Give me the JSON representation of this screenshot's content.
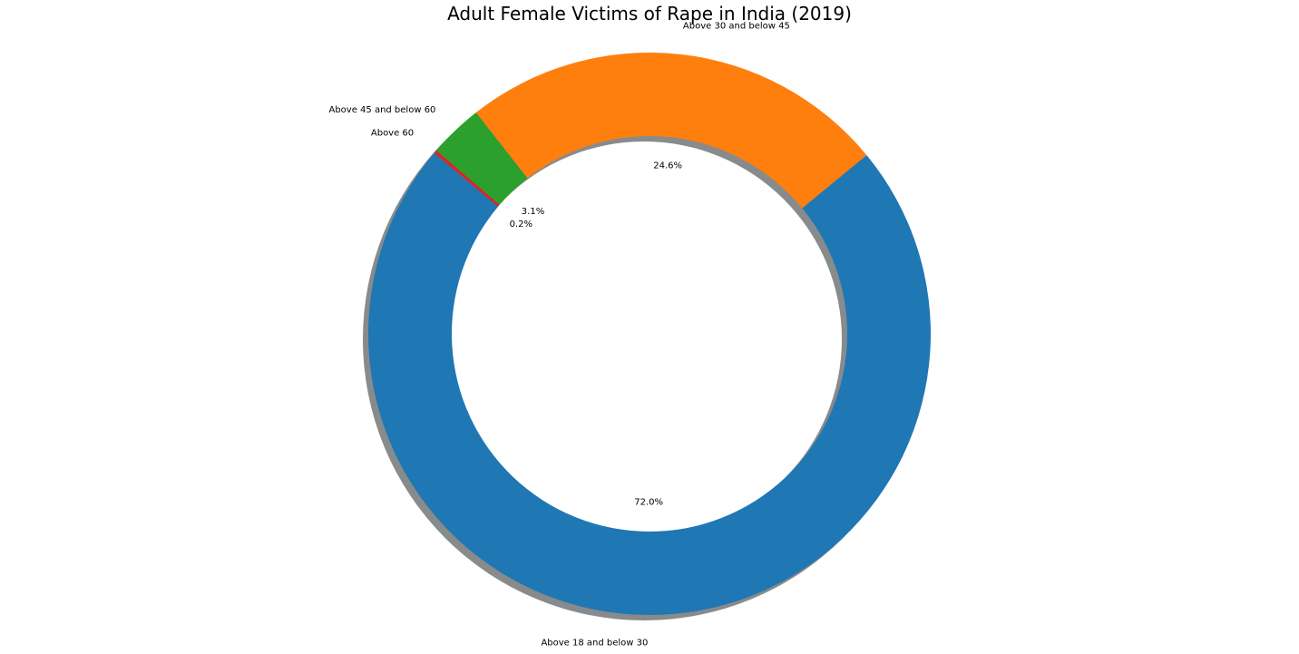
{
  "chart_data": {
    "type": "pie",
    "title": "Adult Female Victims of Rape in India (2019)",
    "style": "donut",
    "shadow": true,
    "start_angle_deg": 140,
    "direction": "counterclockwise",
    "slices": [
      {
        "label": "Above 18 and below 30",
        "percent": 72.0,
        "percent_label": "72.0%",
        "color": "#1f77b4"
      },
      {
        "label": "Above 30 and below 45",
        "percent": 24.6,
        "percent_label": "24.6%",
        "color": "#ff7f0e"
      },
      {
        "label": "Above 45 and below 60",
        "percent": 3.1,
        "percent_label": "3.1%",
        "color": "#2ca02c"
      },
      {
        "label": "Above 60",
        "percent": 0.2,
        "percent_label": "0.2%",
        "color": "#d62728"
      }
    ]
  }
}
